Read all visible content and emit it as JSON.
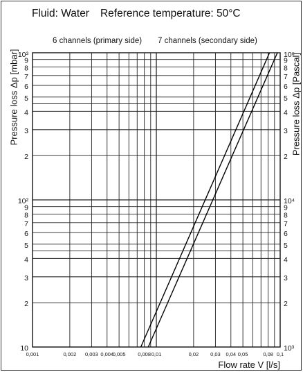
{
  "chart_data": {
    "type": "line",
    "title": "Fluid: Water",
    "subtitle": "Reference temperature: 50°C",
    "xlabel": "Flow rate V [l/s]",
    "ylabel_left": "Pressure loss Δp [mbar]",
    "ylabel_right": "Pressure loss Δp [Pascal]",
    "x_scale": "log",
    "y_scale": "log",
    "xlim": [
      0.001,
      0.1
    ],
    "ylim_left": [
      10,
      1000
    ],
    "ylim_right": [
      1000,
      100000
    ],
    "grid": true,
    "x_tick_labels": [
      {
        "v": 0.001,
        "t": "0,001"
      },
      {
        "v": 0.002,
        "t": "0,002"
      },
      {
        "v": 0.003,
        "t": "0,003"
      },
      {
        "v": 0.004,
        "t": "0,004"
      },
      {
        "v": 0.005,
        "t": "0,005"
      },
      {
        "v": 0.008,
        "t": "0,008"
      },
      {
        "v": 0.01,
        "t": "0,01"
      },
      {
        "v": 0.02,
        "t": "0,02"
      },
      {
        "v": 0.03,
        "t": "0,03"
      },
      {
        "v": 0.04,
        "t": "0,04"
      },
      {
        "v": 0.05,
        "t": "0,05"
      },
      {
        "v": 0.08,
        "t": "0,08"
      },
      {
        "v": 0.1,
        "t": "0,1"
      }
    ],
    "y_left_ticks": [
      {
        "v": 10,
        "t": "10"
      },
      {
        "v": 20,
        "t": "2"
      },
      {
        "v": 30,
        "t": "3"
      },
      {
        "v": 40,
        "t": "4"
      },
      {
        "v": 50,
        "t": "5"
      },
      {
        "v": 60,
        "t": "6"
      },
      {
        "v": 70,
        "t": "7"
      },
      {
        "v": 80,
        "t": "8"
      },
      {
        "v": 90,
        "t": "9"
      },
      {
        "v": 100,
        "t": "10²"
      },
      {
        "v": 200,
        "t": "2"
      },
      {
        "v": 300,
        "t": "3"
      },
      {
        "v": 400,
        "t": "4"
      },
      {
        "v": 500,
        "t": "5"
      },
      {
        "v": 600,
        "t": "6"
      },
      {
        "v": 700,
        "t": "7"
      },
      {
        "v": 800,
        "t": "8"
      },
      {
        "v": 900,
        "t": "9"
      },
      {
        "v": 1000,
        "t": "10³"
      }
    ],
    "y_right_ticks": [
      {
        "v": 1000,
        "t": "10³"
      },
      {
        "v": 2000,
        "t": "2"
      },
      {
        "v": 3000,
        "t": "3"
      },
      {
        "v": 4000,
        "t": "4"
      },
      {
        "v": 5000,
        "t": "5"
      },
      {
        "v": 6000,
        "t": "6"
      },
      {
        "v": 7000,
        "t": "7"
      },
      {
        "v": 8000,
        "t": "8"
      },
      {
        "v": 9000,
        "t": "9"
      },
      {
        "v": 10000,
        "t": "10⁴"
      },
      {
        "v": 20000,
        "t": "2"
      },
      {
        "v": 30000,
        "t": "3"
      },
      {
        "v": 40000,
        "t": "4"
      },
      {
        "v": 50000,
        "t": "5"
      },
      {
        "v": 60000,
        "t": "6"
      },
      {
        "v": 70000,
        "t": "7"
      },
      {
        "v": 80000,
        "t": "8"
      },
      {
        "v": 90000,
        "t": "9"
      },
      {
        "v": 100000,
        "t": "10⁵"
      }
    ],
    "series": [
      {
        "name": "6 channels (primary side)",
        "x": [
          0.0075,
          0.082
        ],
        "y": [
          10,
          1000
        ]
      },
      {
        "name": "7 channels (secondary side)",
        "x": [
          0.0086,
          0.095
        ],
        "y": [
          10,
          1000
        ]
      }
    ]
  }
}
